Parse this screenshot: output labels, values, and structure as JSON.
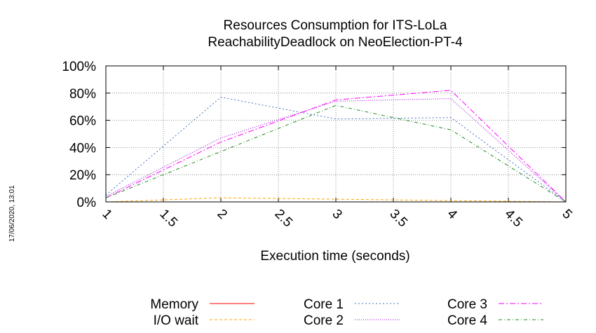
{
  "stamp": "17/06/2020, 13:01",
  "chart_data": {
    "type": "line",
    "title_lines": [
      "Resources Consumption for ITS-LoLa",
      "ReachabilityDeadlock on NeoElection-PT-4"
    ],
    "xlabel": "Execution time (seconds)",
    "ylabel": "",
    "xlim": [
      1,
      5
    ],
    "ylim": [
      0,
      100
    ],
    "x_ticks": [
      "1",
      "1.5",
      "2",
      "2.5",
      "3",
      "3.5",
      "4",
      "4.5",
      "5"
    ],
    "y_ticks": [
      "0%",
      "20%",
      "40%",
      "60%",
      "80%",
      "100%"
    ],
    "grid": true,
    "legend_position": "bottom",
    "x": [
      1,
      2,
      3,
      4,
      5
    ],
    "series": [
      {
        "name": "Memory",
        "color": "#ff0000",
        "dash": "",
        "values": [
          0,
          0,
          0,
          0,
          0
        ]
      },
      {
        "name": "I/O wait",
        "color": "#ffa500",
        "dash": "4,3",
        "values": [
          0,
          3,
          2,
          1,
          0
        ]
      },
      {
        "name": "Core 1",
        "color": "#4472c4",
        "dash": "2,3",
        "values": [
          5,
          77,
          61,
          62,
          0
        ]
      },
      {
        "name": "Core 2",
        "color": "#9400d3",
        "dash": "1,2",
        "values": [
          4,
          47,
          74,
          76,
          0
        ]
      },
      {
        "name": "Core 3",
        "color": "#ff00ff",
        "dash": "8,3,2,3",
        "values": [
          3,
          44,
          75,
          82,
          0
        ]
      },
      {
        "name": "Core 4",
        "color": "#228b22",
        "dash": "5,3,1,3",
        "values": [
          3,
          37,
          71,
          53,
          0
        ]
      }
    ]
  }
}
